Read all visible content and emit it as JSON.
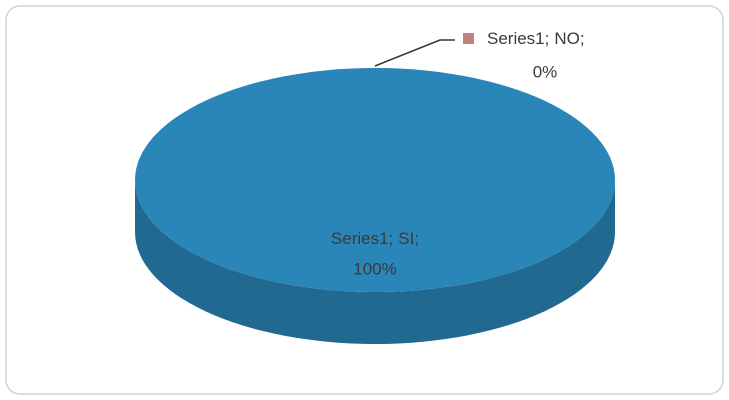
{
  "chart_data": {
    "type": "pie",
    "three_d": true,
    "series": [
      {
        "name": "Series1",
        "categories": [
          "SI",
          "NO"
        ],
        "values": [
          100,
          0
        ],
        "value_labels": [
          "100%",
          "0%"
        ],
        "colors": [
          "#2a86b9",
          "#c4807e"
        ]
      }
    ],
    "label_separator": ";"
  }
}
